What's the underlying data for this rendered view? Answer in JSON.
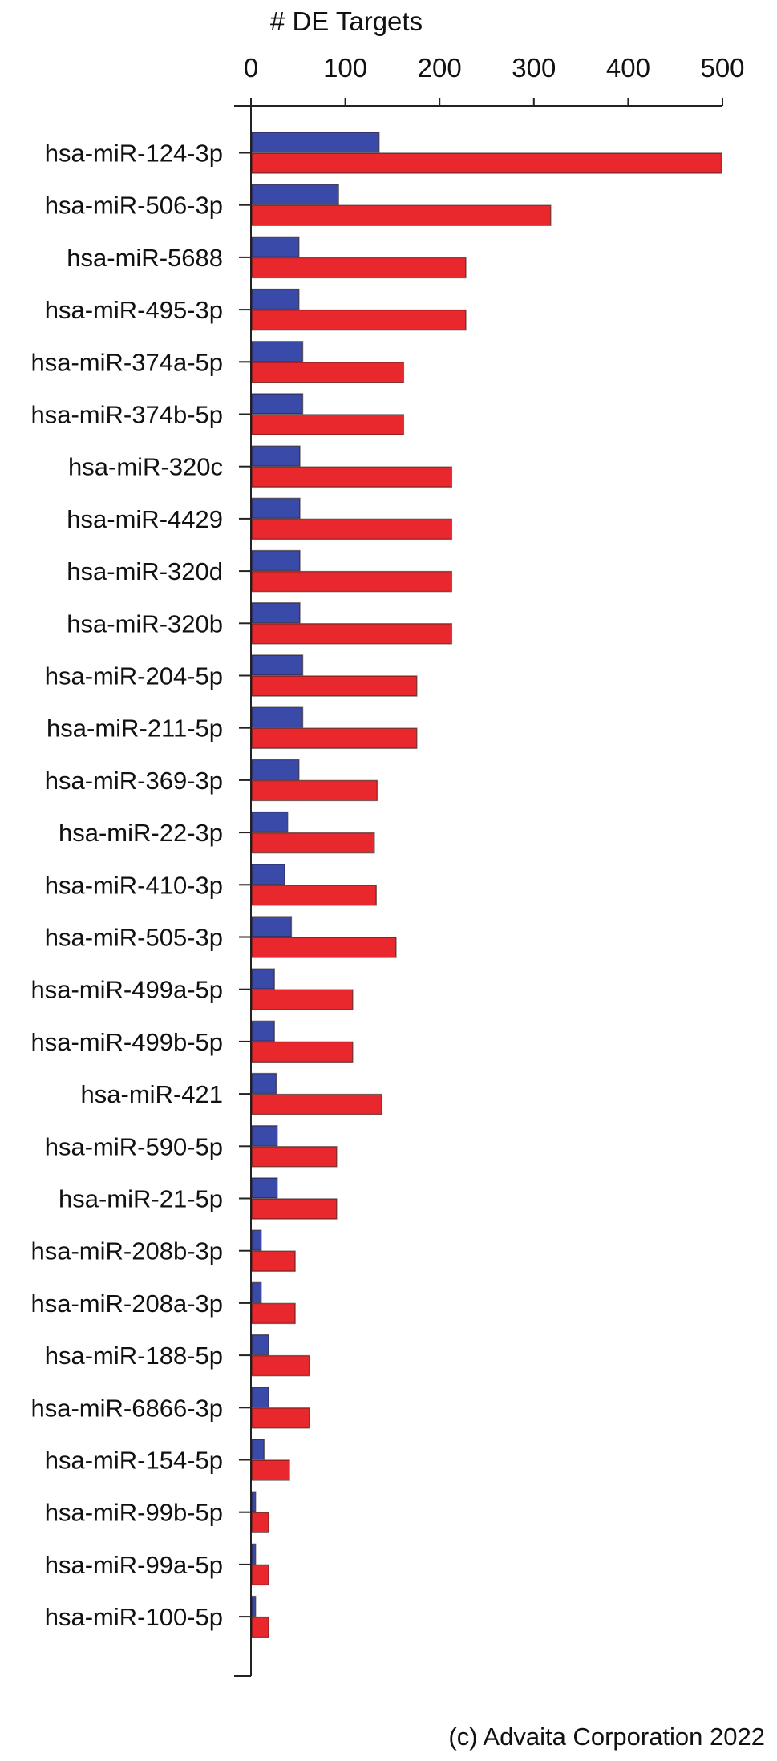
{
  "chart_data": {
    "type": "bar",
    "orientation": "horizontal",
    "xlabel": "# DE Targets",
    "xlim": [
      0,
      500
    ],
    "xticks": [
      0,
      100,
      200,
      300,
      400,
      500
    ],
    "grid": false,
    "categories": [
      "hsa-miR-124-3p",
      "hsa-miR-506-3p",
      "hsa-miR-5688",
      "hsa-miR-495-3p",
      "hsa-miR-374a-5p",
      "hsa-miR-374b-5p",
      "hsa-miR-320c",
      "hsa-miR-4429",
      "hsa-miR-320d",
      "hsa-miR-320b",
      "hsa-miR-204-5p",
      "hsa-miR-211-5p",
      "hsa-miR-369-3p",
      "hsa-miR-22-3p",
      "hsa-miR-410-3p",
      "hsa-miR-505-3p",
      "hsa-miR-499a-5p",
      "hsa-miR-499b-5p",
      "hsa-miR-421",
      "hsa-miR-590-5p",
      "hsa-miR-21-5p",
      "hsa-miR-208b-3p",
      "hsa-miR-208a-3p",
      "hsa-miR-188-5p",
      "hsa-miR-6866-3p",
      "hsa-miR-154-5p",
      "hsa-miR-99b-5p",
      "hsa-miR-99a-5p",
      "hsa-miR-100-5p"
    ],
    "series": [
      {
        "color": "#3a4aa8",
        "values": [
          135,
          92,
          50,
          50,
          54,
          54,
          51,
          51,
          51,
          51,
          54,
          54,
          50,
          38,
          35,
          42,
          24,
          24,
          26,
          27,
          27,
          10,
          10,
          18,
          18,
          13,
          4,
          4,
          4
        ]
      },
      {
        "color": "#e8282c",
        "values": [
          498,
          317,
          227,
          227,
          161,
          161,
          212,
          212,
          212,
          212,
          175,
          175,
          133,
          130,
          132,
          153,
          107,
          107,
          138,
          90,
          90,
          46,
          46,
          61,
          61,
          40,
          18,
          18,
          18
        ]
      }
    ]
  },
  "credit": "(c) Advaita Corporation 2022"
}
